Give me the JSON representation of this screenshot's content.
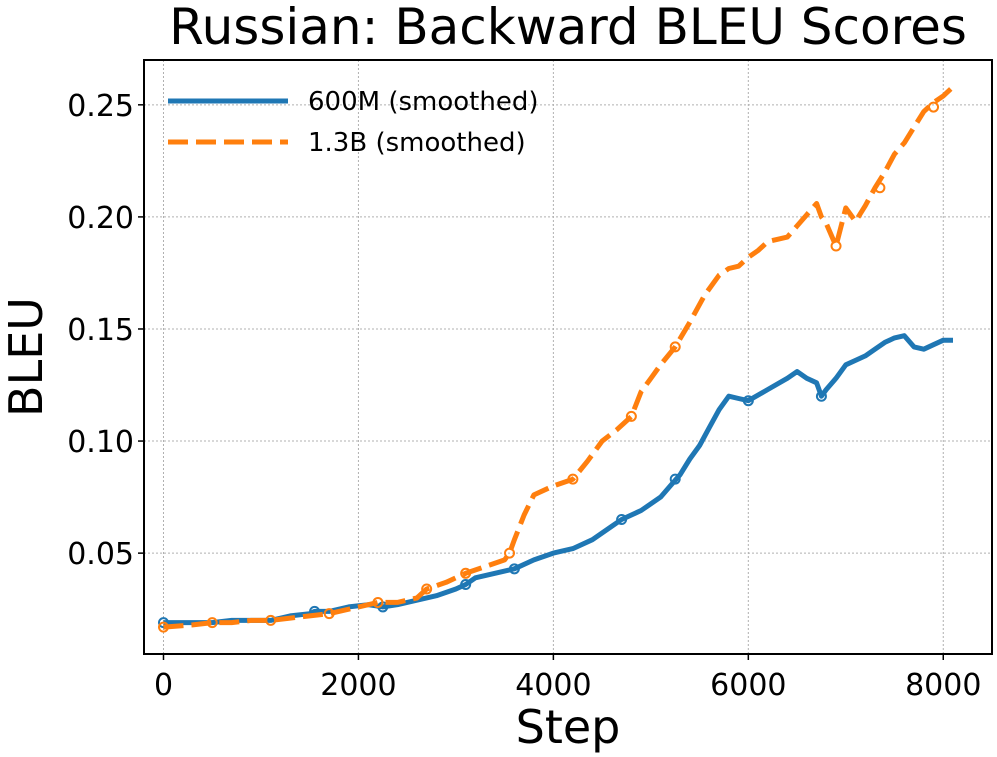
{
  "chart_data": {
    "type": "line",
    "title": "Russian: Backward BLEU Scores",
    "xlabel": "Step",
    "ylabel": "BLEU",
    "xlim": [
      -200,
      8500
    ],
    "ylim": [
      0.005,
      0.27
    ],
    "xticks": [
      0,
      2000,
      4000,
      6000,
      8000
    ],
    "xtick_labels": [
      "0",
      "2000",
      "4000",
      "6000",
      "8000"
    ],
    "yticks": [
      0.05,
      0.1,
      0.15,
      0.2,
      0.25
    ],
    "ytick_labels": [
      "0.05",
      "0.10",
      "0.15",
      "0.20",
      "0.25"
    ],
    "grid": true,
    "legend_position": "top-left",
    "series": [
      {
        "name": "600M (smoothed)",
        "color": "#1f77b4",
        "linestyle": "solid",
        "x": [
          0,
          300,
          500,
          700,
          900,
          1100,
          1300,
          1500,
          1550,
          1700,
          1900,
          2100,
          2250,
          2400,
          2600,
          2800,
          3000,
          3100,
          3200,
          3400,
          3600,
          3800,
          4000,
          4200,
          4400,
          4600,
          4700,
          4900,
          5100,
          5200,
          5300,
          5400,
          5500,
          5600,
          5700,
          5800,
          5900,
          6000,
          6200,
          6400,
          6500,
          6600,
          6700,
          6750,
          6800,
          6900,
          7000,
          7100,
          7200,
          7300,
          7400,
          7500,
          7600,
          7700,
          7800,
          7900,
          8000,
          8100
        ],
        "y": [
          0.019,
          0.019,
          0.019,
          0.02,
          0.02,
          0.02,
          0.022,
          0.023,
          0.024,
          0.024,
          0.026,
          0.027,
          0.026,
          0.027,
          0.029,
          0.031,
          0.034,
          0.036,
          0.039,
          0.041,
          0.043,
          0.047,
          0.05,
          0.052,
          0.056,
          0.062,
          0.065,
          0.069,
          0.075,
          0.08,
          0.085,
          0.092,
          0.098,
          0.106,
          0.114,
          0.12,
          0.119,
          0.118,
          0.123,
          0.128,
          0.131,
          0.128,
          0.126,
          0.12,
          0.123,
          0.128,
          0.134,
          0.136,
          0.138,
          0.141,
          0.144,
          0.146,
          0.147,
          0.142,
          0.141,
          0.143,
          0.145,
          0.145
        ],
        "marker_x": [
          0,
          1550,
          2250,
          3100,
          3600,
          4700,
          5250,
          6000,
          6750
        ],
        "marker_y": [
          0.019,
          0.024,
          0.026,
          0.036,
          0.043,
          0.065,
          0.083,
          0.118,
          0.12
        ]
      },
      {
        "name": "1.3B (smoothed)",
        "color": "#ff7f0e",
        "linestyle": "dashed",
        "x": [
          0,
          300,
          500,
          700,
          900,
          1100,
          1300,
          1500,
          1700,
          1900,
          2100,
          2200,
          2400,
          2600,
          2700,
          2900,
          3100,
          3300,
          3500,
          3550,
          3600,
          3700,
          3800,
          4000,
          4200,
          4350,
          4500,
          4650,
          4800,
          4900,
          5000,
          5100,
          5250,
          5400,
          5550,
          5700,
          5800,
          5900,
          6000,
          6100,
          6200,
          6300,
          6400,
          6500,
          6600,
          6700,
          6750,
          6800,
          6900,
          7000,
          7100,
          7200,
          7300,
          7400,
          7500,
          7600,
          7700,
          7800,
          7900,
          8000,
          8100
        ],
        "y": [
          0.017,
          0.018,
          0.019,
          0.019,
          0.02,
          0.02,
          0.021,
          0.022,
          0.023,
          0.025,
          0.027,
          0.028,
          0.028,
          0.03,
          0.034,
          0.037,
          0.041,
          0.044,
          0.047,
          0.05,
          0.056,
          0.067,
          0.076,
          0.08,
          0.083,
          0.091,
          0.1,
          0.105,
          0.111,
          0.122,
          0.128,
          0.134,
          0.142,
          0.153,
          0.165,
          0.174,
          0.177,
          0.178,
          0.182,
          0.185,
          0.189,
          0.19,
          0.191,
          0.196,
          0.201,
          0.206,
          0.2,
          0.197,
          0.187,
          0.204,
          0.198,
          0.205,
          0.213,
          0.22,
          0.228,
          0.233,
          0.24,
          0.247,
          0.251,
          0.254,
          0.258
        ],
        "marker_x": [
          0,
          500,
          1100,
          1700,
          2200,
          2700,
          3100,
          3550,
          4200,
          4800,
          5250,
          6900,
          7350,
          7900
        ],
        "marker_y": [
          0.017,
          0.019,
          0.02,
          0.023,
          0.028,
          0.034,
          0.041,
          0.05,
          0.083,
          0.111,
          0.142,
          0.187,
          0.213,
          0.249
        ]
      }
    ]
  }
}
